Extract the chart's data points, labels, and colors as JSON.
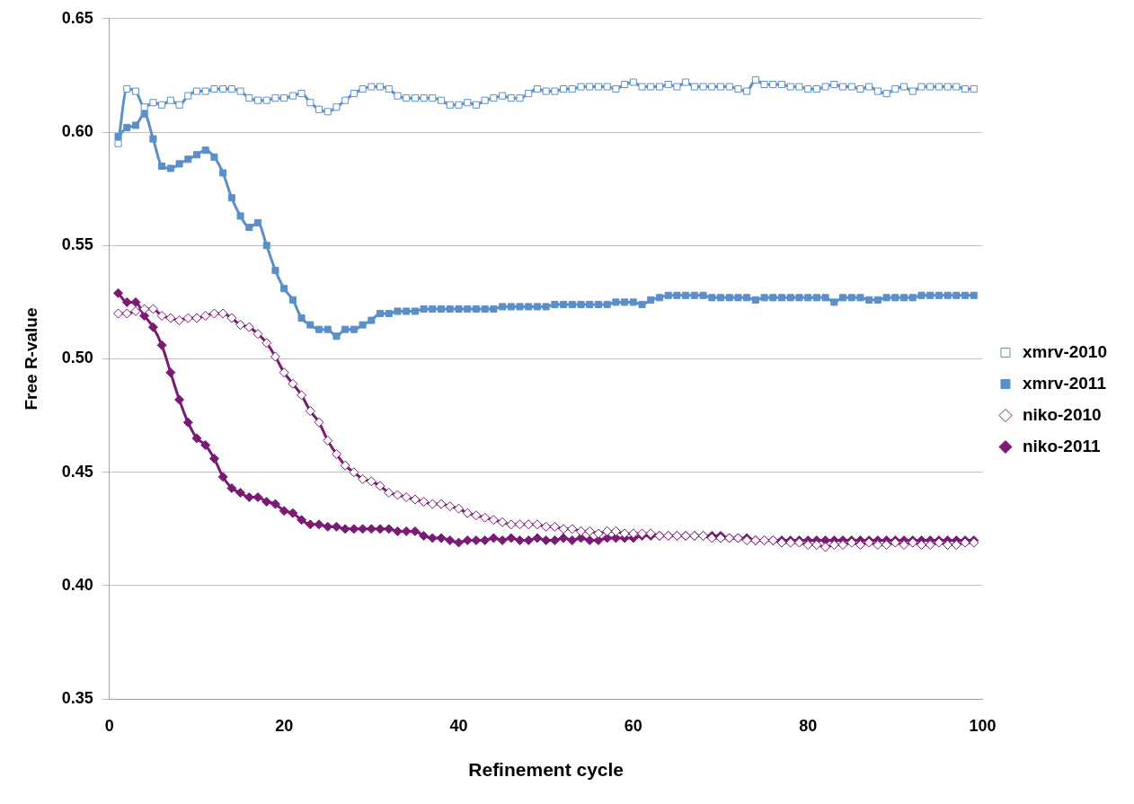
{
  "chart_data": {
    "type": "line",
    "xlabel": "Refinement cycle",
    "ylabel": "Free R-value",
    "xlim": [
      0,
      100
    ],
    "xticks": [
      0,
      20,
      40,
      60,
      80,
      100
    ],
    "ylim": [
      0.35,
      0.65
    ],
    "yticks": [
      {
        "value": 0.35,
        "label": "0.35"
      },
      {
        "value": 0.4,
        "label": "0.40"
      },
      {
        "value": 0.45,
        "label": "0.45"
      },
      {
        "value": 0.5,
        "label": "0.50"
      },
      {
        "value": 0.55,
        "label": "0.55"
      },
      {
        "value": 0.6,
        "label": "0.60"
      },
      {
        "value": 0.65,
        "label": "0.65"
      }
    ],
    "grid": "y",
    "legend": "right",
    "line_style": "solid",
    "x": [
      1,
      2,
      3,
      4,
      5,
      6,
      7,
      8,
      9,
      10,
      11,
      12,
      13,
      14,
      15,
      16,
      17,
      18,
      19,
      20,
      21,
      22,
      23,
      24,
      25,
      26,
      27,
      28,
      29,
      30,
      31,
      32,
      33,
      34,
      35,
      36,
      37,
      38,
      39,
      40,
      41,
      42,
      43,
      44,
      45,
      46,
      47,
      48,
      49,
      50,
      51,
      52,
      53,
      54,
      55,
      56,
      57,
      58,
      59,
      60,
      61,
      62,
      63,
      64,
      65,
      66,
      67,
      68,
      69,
      70,
      71,
      72,
      73,
      74,
      75,
      76,
      77,
      78,
      79,
      80,
      81,
      82,
      83,
      84,
      85,
      86,
      87,
      88,
      89,
      90,
      91,
      92,
      93,
      94,
      95,
      96,
      97,
      98,
      99
    ],
    "series": [
      {
        "name": "xmrv-2010",
        "color": "#5b8fc9",
        "marker": "square",
        "values": [
          0.595,
          0.619,
          0.618,
          0.611,
          0.613,
          0.612,
          0.614,
          0.612,
          0.616,
          0.618,
          0.618,
          0.619,
          0.619,
          0.619,
          0.618,
          0.615,
          0.614,
          0.614,
          0.615,
          0.615,
          0.616,
          0.617,
          0.613,
          0.61,
          0.609,
          0.611,
          0.614,
          0.617,
          0.619,
          0.62,
          0.62,
          0.619,
          0.616,
          0.615,
          0.615,
          0.615,
          0.615,
          0.614,
          0.612,
          0.612,
          0.613,
          0.612,
          0.614,
          0.615,
          0.616,
          0.615,
          0.615,
          0.617,
          0.619,
          0.618,
          0.618,
          0.619,
          0.619,
          0.62,
          0.62,
          0.62,
          0.62,
          0.619,
          0.621,
          0.622,
          0.62,
          0.62,
          0.62,
          0.621,
          0.62,
          0.622,
          0.62,
          0.62,
          0.62,
          0.62,
          0.62,
          0.619,
          0.618,
          0.623,
          0.621,
          0.621,
          0.621,
          0.62,
          0.62,
          0.619,
          0.619,
          0.62,
          0.621,
          0.62,
          0.62,
          0.619,
          0.62,
          0.618,
          0.617,
          0.619,
          0.62,
          0.618,
          0.62,
          0.62,
          0.62,
          0.62,
          0.62,
          0.619,
          0.619
        ]
      },
      {
        "name": "xmrv-2011",
        "color": "#5b8fc9",
        "marker": "square",
        "values": [
          0.598,
          0.602,
          0.603,
          0.608,
          0.597,
          0.585,
          0.584,
          0.586,
          0.588,
          0.59,
          0.592,
          0.589,
          0.582,
          0.571,
          0.563,
          0.558,
          0.56,
          0.55,
          0.539,
          0.531,
          0.526,
          0.518,
          0.515,
          0.513,
          0.513,
          0.51,
          0.513,
          0.513,
          0.515,
          0.517,
          0.52,
          0.52,
          0.521,
          0.521,
          0.521,
          0.522,
          0.522,
          0.522,
          0.522,
          0.522,
          0.522,
          0.522,
          0.522,
          0.522,
          0.523,
          0.523,
          0.523,
          0.523,
          0.523,
          0.523,
          0.524,
          0.524,
          0.524,
          0.524,
          0.524,
          0.524,
          0.524,
          0.525,
          0.525,
          0.525,
          0.524,
          0.526,
          0.527,
          0.528,
          0.528,
          0.528,
          0.528,
          0.528,
          0.527,
          0.527,
          0.527,
          0.527,
          0.527,
          0.526,
          0.527,
          0.527,
          0.527,
          0.527,
          0.527,
          0.527,
          0.527,
          0.527,
          0.525,
          0.527,
          0.527,
          0.527,
          0.526,
          0.526,
          0.527,
          0.527,
          0.527,
          0.527,
          0.528,
          0.528,
          0.528,
          0.528,
          0.528,
          0.528,
          0.528
        ]
      },
      {
        "name": "niko-2010",
        "color": "#7b1a74",
        "marker": "diamond",
        "values": [
          0.52,
          0.52,
          0.521,
          0.522,
          0.522,
          0.519,
          0.518,
          0.517,
          0.518,
          0.518,
          0.519,
          0.52,
          0.52,
          0.518,
          0.515,
          0.514,
          0.511,
          0.507,
          0.501,
          0.494,
          0.489,
          0.484,
          0.477,
          0.472,
          0.464,
          0.458,
          0.453,
          0.45,
          0.447,
          0.446,
          0.444,
          0.441,
          0.44,
          0.439,
          0.438,
          0.437,
          0.436,
          0.436,
          0.435,
          0.434,
          0.432,
          0.431,
          0.43,
          0.429,
          0.428,
          0.427,
          0.427,
          0.427,
          0.427,
          0.426,
          0.426,
          0.425,
          0.425,
          0.424,
          0.424,
          0.423,
          0.424,
          0.424,
          0.423,
          0.423,
          0.423,
          0.423,
          0.422,
          0.422,
          0.422,
          0.422,
          0.422,
          0.422,
          0.421,
          0.421,
          0.421,
          0.421,
          0.42,
          0.42,
          0.42,
          0.42,
          0.419,
          0.419,
          0.419,
          0.418,
          0.418,
          0.417,
          0.418,
          0.418,
          0.419,
          0.418,
          0.419,
          0.418,
          0.418,
          0.419,
          0.418,
          0.419,
          0.418,
          0.418,
          0.419,
          0.418,
          0.418,
          0.419,
          0.419
        ]
      },
      {
        "name": "niko-2011",
        "color": "#7b1a74",
        "marker": "diamond",
        "values": [
          0.529,
          0.525,
          0.525,
          0.519,
          0.514,
          0.506,
          0.494,
          0.482,
          0.472,
          0.465,
          0.462,
          0.456,
          0.448,
          0.443,
          0.441,
          0.439,
          0.439,
          0.437,
          0.436,
          0.433,
          0.432,
          0.429,
          0.427,
          0.427,
          0.426,
          0.426,
          0.425,
          0.425,
          0.425,
          0.425,
          0.425,
          0.425,
          0.424,
          0.424,
          0.424,
          0.422,
          0.421,
          0.421,
          0.42,
          0.419,
          0.42,
          0.42,
          0.42,
          0.421,
          0.42,
          0.421,
          0.42,
          0.42,
          0.421,
          0.42,
          0.42,
          0.421,
          0.42,
          0.421,
          0.42,
          0.42,
          0.421,
          0.421,
          0.421,
          0.421,
          0.422,
          0.422,
          0.422,
          0.422,
          0.422,
          0.422,
          0.422,
          0.422,
          0.422,
          0.422,
          0.421,
          0.421,
          0.421,
          0.42,
          0.42,
          0.42,
          0.42,
          0.42,
          0.42,
          0.42,
          0.42,
          0.42,
          0.42,
          0.42,
          0.42,
          0.42,
          0.42,
          0.42,
          0.42,
          0.42,
          0.42,
          0.42,
          0.42,
          0.42,
          0.42,
          0.42,
          0.42,
          0.42,
          0.42
        ]
      }
    ]
  }
}
